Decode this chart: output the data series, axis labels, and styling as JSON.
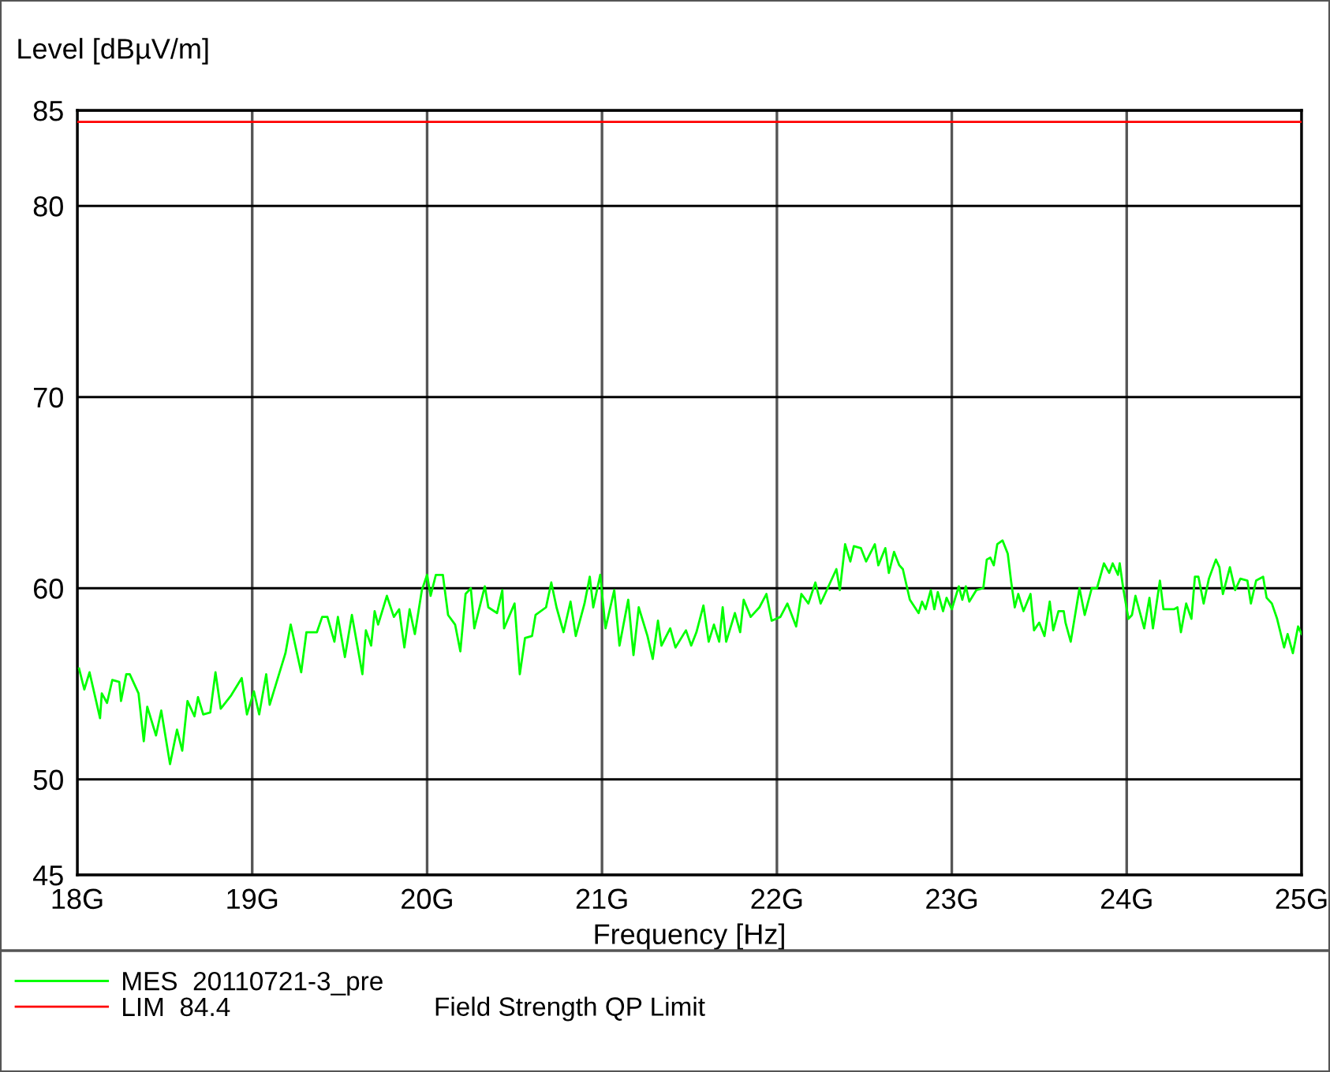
{
  "chart_data": {
    "type": "line",
    "xlabel": "Frequency [Hz]",
    "ylabel": "Level [dBµV/m]",
    "xlim": [
      18,
      25
    ],
    "ylim": [
      45,
      85
    ],
    "xticks": [
      {
        "value": 18,
        "label": "18G"
      },
      {
        "value": 19,
        "label": "19G"
      },
      {
        "value": 20,
        "label": "20G"
      },
      {
        "value": 21,
        "label": "21G"
      },
      {
        "value": 22,
        "label": "22G"
      },
      {
        "value": 23,
        "label": "23G"
      },
      {
        "value": 24,
        "label": "24G"
      },
      {
        "value": 25,
        "label": "25G"
      }
    ],
    "yticks": [
      45,
      50,
      60,
      70,
      80,
      85
    ],
    "grid": true,
    "legend": "bottom",
    "marker": "none",
    "line_style": "solid",
    "series": [
      {
        "name": "MES  20110721-3_pre",
        "color": "#00ff00",
        "x": [
          18.01,
          18.04,
          18.07,
          18.13,
          18.14,
          18.17,
          18.2,
          18.24,
          18.25,
          18.28,
          18.3,
          18.35,
          18.38,
          18.4,
          18.45,
          18.48,
          18.53,
          18.57,
          18.6,
          18.63,
          18.67,
          18.69,
          18.72,
          18.76,
          18.79,
          18.82,
          18.88,
          18.94,
          18.97,
          19.01,
          19.04,
          19.08,
          19.1,
          19.19,
          19.22,
          19.28,
          19.31,
          19.37,
          19.4,
          19.43,
          19.47,
          19.49,
          19.53,
          19.57,
          19.63,
          19.65,
          19.68,
          19.7,
          19.72,
          19.77,
          19.81,
          19.84,
          19.87,
          19.9,
          19.93,
          19.97,
          20.0,
          20.02,
          20.05,
          20.09,
          20.12,
          20.16,
          20.19,
          20.22,
          20.25,
          20.27,
          20.33,
          20.35,
          20.4,
          20.43,
          20.44,
          20.5,
          20.53,
          20.56,
          20.6,
          20.62,
          20.68,
          20.71,
          20.74,
          20.78,
          20.82,
          20.85,
          20.9,
          20.93,
          20.95,
          20.99,
          21.02,
          21.07,
          21.1,
          21.15,
          21.18,
          21.21,
          21.26,
          21.29,
          21.32,
          21.34,
          21.39,
          21.42,
          21.48,
          21.51,
          21.54,
          21.58,
          21.61,
          21.64,
          21.67,
          21.69,
          21.71,
          21.76,
          21.79,
          21.81,
          21.85,
          21.9,
          21.94,
          21.97,
          22.02,
          22.06,
          22.11,
          22.14,
          22.18,
          22.22,
          22.25,
          22.29,
          22.34,
          22.36,
          22.39,
          22.42,
          22.44,
          22.48,
          22.51,
          22.56,
          22.58,
          22.62,
          22.64,
          22.67,
          22.7,
          22.72,
          22.76,
          22.81,
          22.83,
          22.85,
          22.88,
          22.9,
          22.92,
          22.95,
          22.97,
          23.0,
          23.04,
          23.06,
          23.08,
          23.1,
          23.14,
          23.18,
          23.2,
          23.22,
          23.24,
          23.26,
          23.29,
          23.32,
          23.34,
          23.36,
          23.38,
          23.41,
          23.45,
          23.47,
          23.5,
          23.53,
          23.56,
          23.58,
          23.61,
          23.64,
          23.65,
          23.68,
          23.73,
          23.76,
          23.8,
          23.83,
          23.87,
          23.9,
          23.92,
          23.95,
          23.96,
          23.98,
          24.01,
          24.03,
          24.05,
          24.1,
          24.13,
          24.15,
          24.19,
          24.21,
          24.27,
          24.29,
          24.31,
          24.34,
          24.37,
          24.39,
          24.41,
          24.44,
          24.47,
          24.51,
          24.53,
          24.55,
          24.59,
          24.62,
          24.65,
          24.69,
          24.71,
          24.74,
          24.78,
          24.8,
          24.83,
          24.86,
          24.9,
          24.92,
          24.95,
          24.98,
          25.0
        ],
        "values": [
          55.8,
          54.7,
          55.6,
          53.2,
          54.5,
          54.0,
          55.2,
          55.1,
          54.1,
          55.5,
          55.5,
          54.5,
          52.0,
          53.8,
          52.3,
          53.6,
          50.8,
          52.6,
          51.5,
          54.1,
          53.3,
          54.3,
          53.4,
          53.5,
          55.6,
          53.7,
          54.4,
          55.3,
          53.4,
          54.6,
          53.4,
          55.5,
          53.9,
          56.6,
          58.1,
          55.6,
          57.7,
          57.7,
          58.5,
          58.5,
          57.2,
          58.5,
          56.4,
          58.6,
          55.5,
          57.8,
          57.0,
          58.8,
          58.1,
          59.6,
          58.5,
          58.9,
          56.9,
          58.9,
          57.6,
          59.9,
          60.7,
          59.6,
          60.7,
          60.7,
          58.6,
          58.1,
          56.7,
          59.7,
          60.0,
          57.9,
          60.1,
          59.0,
          58.7,
          59.9,
          57.9,
          59.2,
          55.5,
          57.4,
          57.5,
          58.6,
          59.0,
          60.3,
          59.0,
          57.7,
          59.3,
          57.5,
          59.2,
          60.6,
          59.0,
          60.7,
          57.9,
          59.9,
          57.0,
          59.4,
          56.5,
          59.0,
          57.5,
          56.3,
          58.3,
          57.0,
          57.9,
          56.9,
          57.8,
          57.0,
          57.7,
          59.1,
          57.2,
          58.1,
          57.2,
          59.0,
          57.2,
          58.7,
          57.7,
          59.4,
          58.5,
          59.0,
          59.7,
          58.3,
          58.5,
          59.2,
          58.0,
          59.7,
          59.2,
          60.3,
          59.2,
          60.0,
          61.0,
          59.9,
          62.3,
          61.4,
          62.2,
          62.1,
          61.4,
          62.3,
          61.2,
          62.1,
          60.8,
          61.9,
          61.2,
          61.0,
          59.4,
          58.7,
          59.3,
          58.9,
          59.9,
          58.9,
          59.8,
          58.8,
          59.5,
          58.9,
          60.1,
          59.4,
          60.1,
          59.3,
          59.9,
          60.0,
          61.5,
          61.6,
          61.2,
          62.3,
          62.5,
          61.8,
          60.3,
          59.0,
          59.7,
          58.8,
          59.7,
          57.8,
          58.2,
          57.5,
          59.3,
          57.8,
          58.8,
          58.8,
          58.2,
          57.2,
          60.0,
          58.6,
          60.0,
          60.0,
          61.3,
          60.8,
          61.3,
          60.7,
          61.3,
          60.0,
          58.4,
          58.6,
          59.6,
          57.9,
          59.5,
          57.9,
          60.4,
          58.9,
          58.9,
          59.0,
          57.7,
          59.2,
          58.4,
          60.6,
          60.6,
          59.2,
          60.5,
          61.5,
          61.1,
          59.7,
          61.1,
          59.9,
          60.5,
          60.4,
          59.2,
          60.4,
          60.6,
          59.5,
          59.2,
          58.4,
          56.9,
          57.6,
          56.6,
          58.0,
          57.6
        ]
      },
      {
        "name": "LIM  84.4",
        "color": "#ff0000",
        "x": [
          18,
          25
        ],
        "values": [
          84.4,
          84.4
        ]
      }
    ],
    "annotations": [
      "Field Strength QP Limit"
    ]
  }
}
